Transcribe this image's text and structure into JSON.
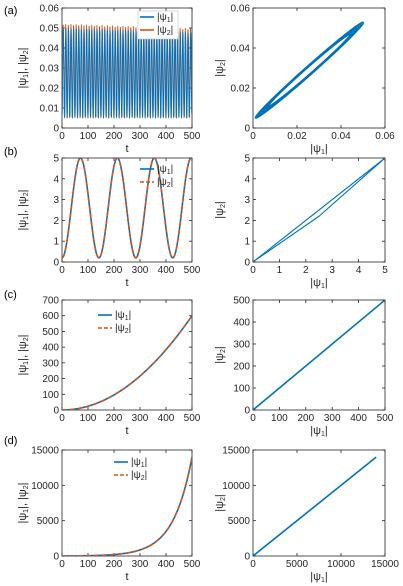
{
  "colors": {
    "series1": "#0072BD",
    "series2": "#D95319",
    "axis": "#262626"
  },
  "chart_data": [
    {
      "panel_label": "(a)",
      "type": "line",
      "xlabel": "t",
      "ylabel": "|ψ₁|, |ψ₂|",
      "xlim": [
        0,
        500
      ],
      "ylim": [
        0,
        0.06
      ],
      "xticks": [
        "0",
        "100",
        "200",
        "300",
        "400",
        "500"
      ],
      "yticks": [
        "0",
        "0.01",
        "0.02",
        "0.03",
        "0.04",
        "0.05",
        "0.06"
      ],
      "legend_position": "top-right",
      "series": [
        {
          "name": "|ψ₁|",
          "style": "solid",
          "description": "fast oscillation, ~50 periods over t=0..500, between ~0.005 and 0.05, slowly decaying peaks",
          "x_period": 10,
          "min": 0.005,
          "max": 0.05
        },
        {
          "name": "|ψ₂|",
          "style": "solid",
          "x_period": 10,
          "min": 0.005,
          "max": 0.052
        }
      ]
    },
    {
      "panel_label": "",
      "type": "line",
      "xlabel": "|ψ₁|",
      "ylabel": "|ψ₂|",
      "xlim": [
        0,
        0.06
      ],
      "ylim": [
        0,
        0.06
      ],
      "xticks": [
        "0",
        "0.02",
        "0.04",
        "0.06"
      ],
      "yticks": [
        "0",
        "0.02",
        "0.04",
        "0.06"
      ],
      "series": [
        {
          "name": "",
          "description": "closed elliptical orbit along diagonal from ~(0.002,0.004) to ~(0.05,0.052)"
        }
      ]
    },
    {
      "panel_label": "(b)",
      "type": "line",
      "xlabel": "t",
      "ylabel": "|ψ₁|, |ψ₂|",
      "xlim": [
        0,
        500
      ],
      "ylim": [
        0,
        5
      ],
      "xticks": [
        "0",
        "100",
        "200",
        "300",
        "400",
        "500"
      ],
      "yticks": [
        "0",
        "1",
        "2",
        "3",
        "4",
        "5"
      ],
      "legend_position": "right",
      "series": [
        {
          "name": "|ψ₁|",
          "style": "solid",
          "x_period": 142,
          "min": 0.2,
          "max": 5
        },
        {
          "name": "|ψ₂|",
          "style": "dashed",
          "x_period": 142,
          "min": 0.2,
          "max": 5
        }
      ]
    },
    {
      "panel_label": "",
      "type": "line",
      "xlabel": "|ψ₁|",
      "ylabel": "|ψ₂|",
      "xlim": [
        0,
        5
      ],
      "ylim": [
        0,
        5
      ],
      "xticks": [
        "0",
        "1",
        "2",
        "3",
        "4",
        "5"
      ],
      "yticks": [
        "0",
        "1",
        "2",
        "3",
        "4",
        "5"
      ],
      "series": [
        {
          "name": "",
          "description": "thin loop along diagonal from (0,0) to (5,5)"
        }
      ]
    },
    {
      "panel_label": "(c)",
      "type": "line",
      "xlabel": "t",
      "ylabel": "|ψ₁|, |ψ₂|",
      "xlim": [
        0,
        500
      ],
      "ylim": [
        0,
        700
      ],
      "xticks": [
        "0",
        "100",
        "200",
        "300",
        "400",
        "500"
      ],
      "yticks": [
        "0",
        "100",
        "200",
        "300",
        "400",
        "500",
        "600",
        "700"
      ],
      "legend_position": "top-left",
      "series": [
        {
          "name": "|ψ₁|",
          "style": "solid",
          "x": [
            0,
            100,
            200,
            300,
            400,
            500
          ],
          "y": [
            0,
            24,
            96,
            216,
            384,
            600
          ]
        },
        {
          "name": "|ψ₂|",
          "style": "dashed",
          "x": [
            0,
            100,
            200,
            300,
            400,
            500
          ],
          "y": [
            0,
            24,
            96,
            216,
            384,
            600
          ]
        }
      ]
    },
    {
      "panel_label": "",
      "type": "line",
      "xlabel": "|ψ₁|",
      "ylabel": "|ψ₂|",
      "xlim": [
        0,
        500
      ],
      "ylim": [
        0,
        500
      ],
      "xticks": [
        "0",
        "100",
        "200",
        "300",
        "400",
        "500"
      ],
      "yticks": [
        "0",
        "100",
        "200",
        "300",
        "400",
        "500"
      ],
      "series": [
        {
          "name": "",
          "x": [
            0,
            500
          ],
          "y": [
            0,
            500
          ]
        }
      ]
    },
    {
      "panel_label": "(d)",
      "type": "line",
      "xlabel": "t",
      "ylabel": "|ψ₁|, |ψ₂|",
      "xlim": [
        0,
        500
      ],
      "ylim": [
        0,
        15000
      ],
      "xticks": [
        "0",
        "100",
        "200",
        "300",
        "400",
        "500"
      ],
      "yticks": [
        "0",
        "5000",
        "10000",
        "15000"
      ],
      "legend_position": "top-center",
      "series": [
        {
          "name": "|ψ₁|",
          "style": "solid",
          "x": [
            0,
            100,
            200,
            250,
            300,
            350,
            400,
            450,
            500
          ],
          "y": [
            0,
            30,
            150,
            400,
            900,
            1900,
            3900,
            7600,
            14000
          ]
        },
        {
          "name": "|ψ₂|",
          "style": "dashed",
          "x": [
            0,
            100,
            200,
            250,
            300,
            350,
            400,
            450,
            500
          ],
          "y": [
            0,
            30,
            150,
            400,
            900,
            1900,
            3900,
            7600,
            14000
          ]
        }
      ]
    },
    {
      "panel_label": "",
      "type": "line",
      "xlabel": "|ψ₁|",
      "ylabel": "|ψ₂|",
      "xlim": [
        0,
        15000
      ],
      "ylim": [
        0,
        15000
      ],
      "xticks": [
        "0",
        "5000",
        "10000",
        "15000"
      ],
      "yticks": [
        "0",
        "5000",
        "10000",
        "15000"
      ],
      "series": [
        {
          "name": "",
          "x": [
            0,
            14000
          ],
          "y": [
            0,
            14000
          ]
        }
      ]
    }
  ]
}
